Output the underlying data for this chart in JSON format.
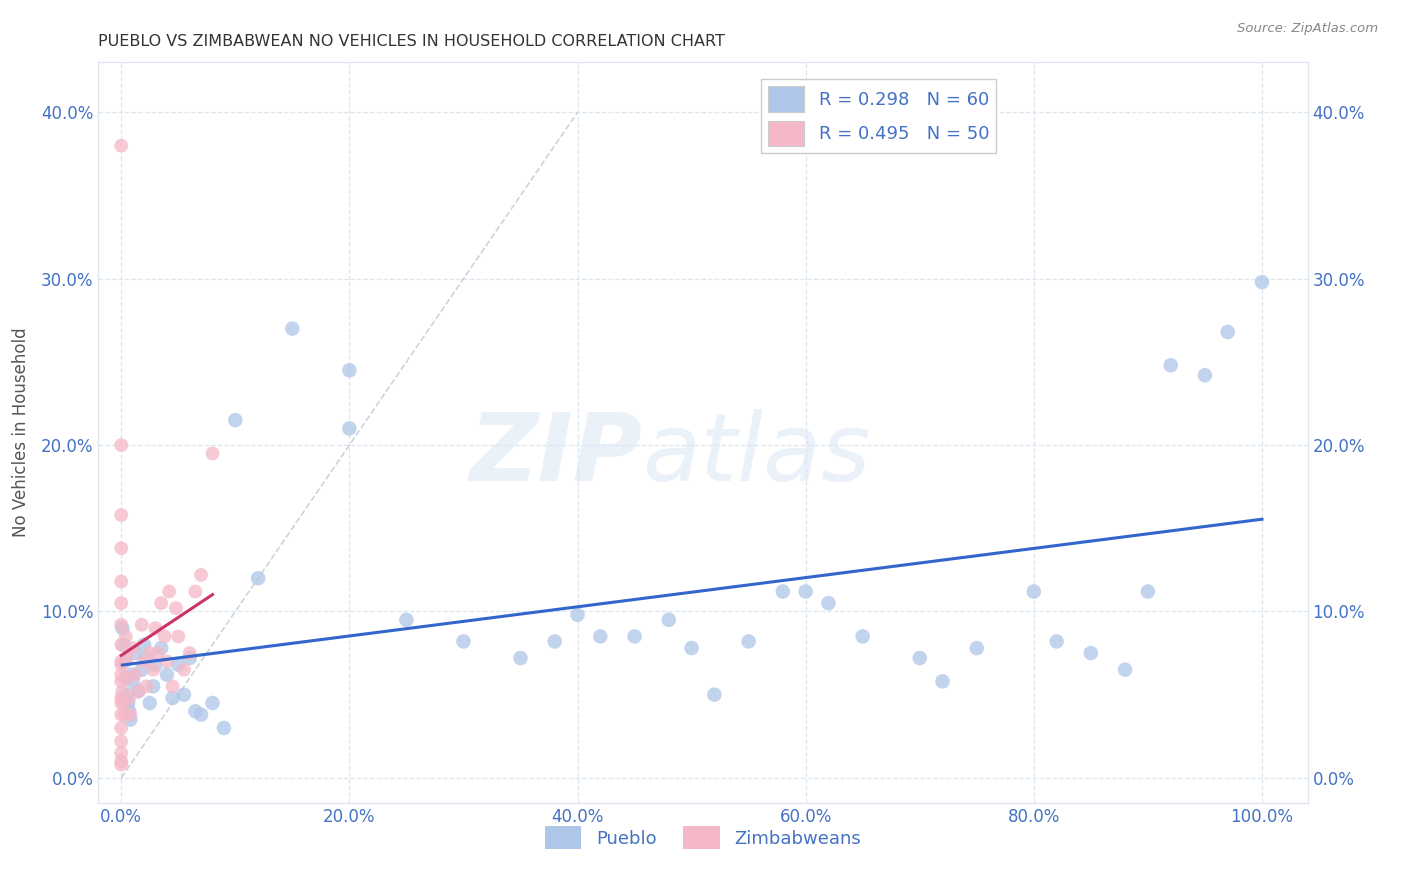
{
  "title": "PUEBLO VS ZIMBABWEAN NO VEHICLES IN HOUSEHOLD CORRELATION CHART",
  "source": "Source: ZipAtlas.com",
  "ylabel": "No Vehicles in Household",
  "background_color": "#ffffff",
  "grid_color": "#dce6f0",
  "pueblo_R": 0.298,
  "pueblo_N": 60,
  "zimbabwe_R": 0.495,
  "zimbabwe_N": 50,
  "pueblo_color": "#aec6e8",
  "zimbabwe_color": "#f5b8c8",
  "pueblo_line_color": "#3366cc",
  "zimbabwe_line_color": "#cc3366",
  "trendline_dashed_color": "#c0c8d8",
  "tick_label_color": "#4472c4",
  "axis_label_color": "#555555",
  "pueblo_x": [
    0.001,
    0.002,
    0.003,
    0.004,
    0.005,
    0.006,
    0.007,
    0.008,
    0.009,
    0.01,
    0.012,
    0.015,
    0.018,
    0.02,
    0.022,
    0.025,
    0.028,
    0.03,
    0.035,
    0.04,
    0.045,
    0.05,
    0.055,
    0.06,
    0.065,
    0.07,
    0.08,
    0.09,
    0.1,
    0.12,
    0.15,
    0.2,
    0.2,
    0.25,
    0.3,
    0.35,
    0.38,
    0.4,
    0.42,
    0.45,
    0.48,
    0.5,
    0.52,
    0.55,
    0.58,
    0.6,
    0.62,
    0.65,
    0.7,
    0.72,
    0.75,
    0.8,
    0.82,
    0.85,
    0.88,
    0.9,
    0.92,
    0.95,
    0.97,
    1.0
  ],
  "pueblo_y": [
    0.09,
    0.08,
    0.07,
    0.06,
    0.05,
    0.045,
    0.04,
    0.035,
    0.062,
    0.058,
    0.075,
    0.052,
    0.065,
    0.08,
    0.072,
    0.045,
    0.055,
    0.068,
    0.078,
    0.062,
    0.048,
    0.068,
    0.05,
    0.072,
    0.04,
    0.038,
    0.045,
    0.03,
    0.215,
    0.12,
    0.27,
    0.245,
    0.21,
    0.095,
    0.082,
    0.072,
    0.082,
    0.098,
    0.085,
    0.085,
    0.095,
    0.078,
    0.05,
    0.082,
    0.112,
    0.112,
    0.105,
    0.085,
    0.072,
    0.058,
    0.078,
    0.112,
    0.082,
    0.075,
    0.065,
    0.112,
    0.248,
    0.242,
    0.268,
    0.298
  ],
  "zimbabwe_x": [
    0.0,
    0.0,
    0.0,
    0.0,
    0.0,
    0.0,
    0.0,
    0.0,
    0.0,
    0.0,
    0.0,
    0.0,
    0.0,
    0.0,
    0.0,
    0.0,
    0.0,
    0.0,
    0.0,
    0.0,
    0.001,
    0.002,
    0.003,
    0.004,
    0.005,
    0.006,
    0.007,
    0.008,
    0.01,
    0.012,
    0.015,
    0.018,
    0.02,
    0.022,
    0.025,
    0.028,
    0.03,
    0.032,
    0.035,
    0.038,
    0.04,
    0.042,
    0.045,
    0.048,
    0.05,
    0.055,
    0.06,
    0.065,
    0.07,
    0.08
  ],
  "zimbabwe_y": [
    0.38,
    0.2,
    0.158,
    0.138,
    0.118,
    0.105,
    0.092,
    0.08,
    0.068,
    0.058,
    0.048,
    0.038,
    0.03,
    0.022,
    0.015,
    0.01,
    0.008,
    0.062,
    0.07,
    0.045,
    0.052,
    0.045,
    0.038,
    0.085,
    0.072,
    0.06,
    0.048,
    0.038,
    0.078,
    0.062,
    0.052,
    0.092,
    0.07,
    0.055,
    0.075,
    0.065,
    0.09,
    0.075,
    0.105,
    0.085,
    0.07,
    0.112,
    0.055,
    0.102,
    0.085,
    0.065,
    0.075,
    0.112,
    0.122,
    0.195
  ],
  "xlim": [
    -0.02,
    1.04
  ],
  "ylim": [
    -0.015,
    0.43
  ],
  "xticks": [
    0.0,
    0.2,
    0.4,
    0.6,
    0.8,
    1.0
  ],
  "xtick_labels": [
    "0.0%",
    "20.0%",
    "40.0%",
    "60.0%",
    "80.0%",
    "100.0%"
  ],
  "yticks": [
    0.0,
    0.1,
    0.2,
    0.3,
    0.4
  ],
  "ytick_labels": [
    "0.0%",
    "10.0%",
    "20.0%",
    "30.0%",
    "40.0%"
  ]
}
